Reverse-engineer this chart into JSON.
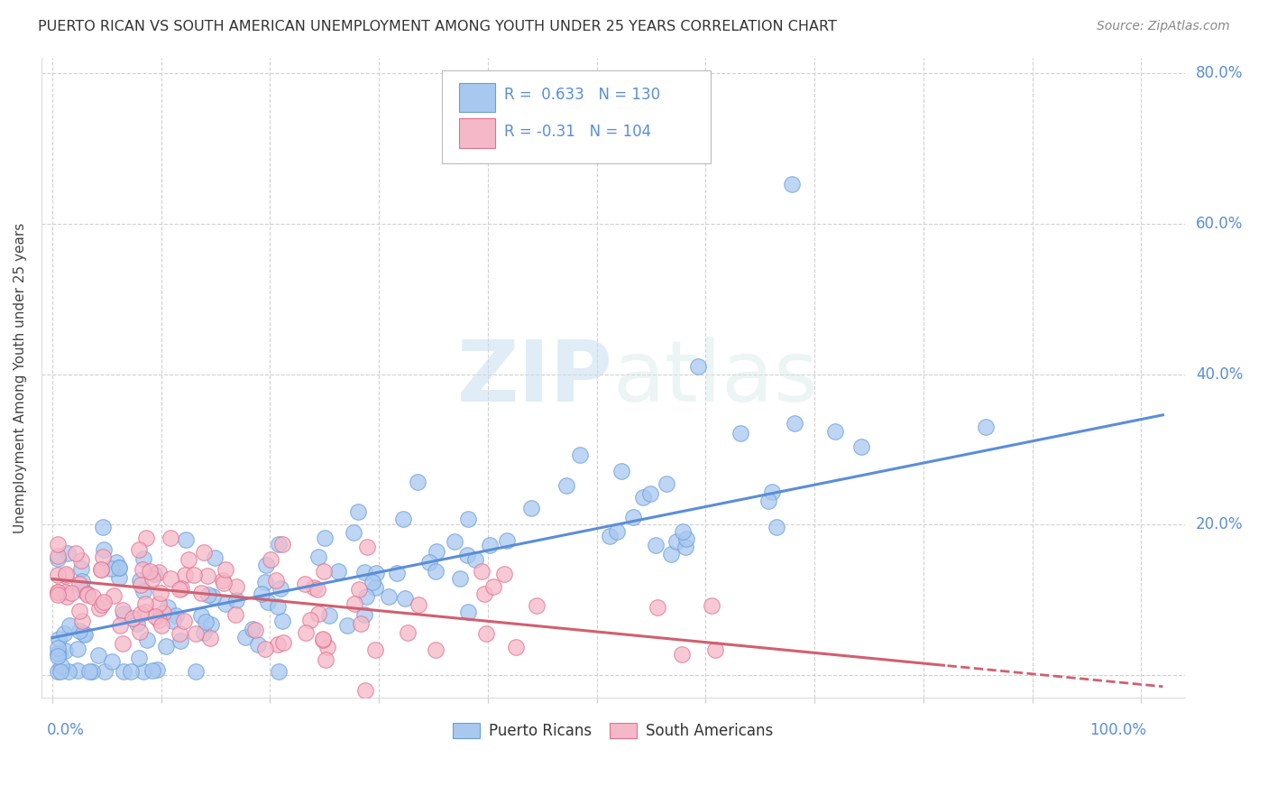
{
  "title": "PUERTO RICAN VS SOUTH AMERICAN UNEMPLOYMENT AMONG YOUTH UNDER 25 YEARS CORRELATION CHART",
  "source": "Source: ZipAtlas.com",
  "ylabel": "Unemployment Among Youth under 25 years",
  "blue_R": 0.633,
  "blue_N": 130,
  "pink_R": -0.31,
  "pink_N": 104,
  "blue_color": "#A8C8F0",
  "pink_color": "#F5B8C8",
  "blue_edge_color": "#6A9FD8",
  "pink_edge_color": "#E07090",
  "blue_line_color": "#5A8ED8",
  "pink_line_color": "#D06070",
  "background_color": "#FFFFFF",
  "grid_color": "#CCCCCC",
  "watermark_color": "#E0E8F0",
  "ytick_color": "#5A8ED8",
  "xtick_color": "#5A8ED8",
  "title_color": "#333333",
  "source_color": "#888888",
  "legend_text_color": "#5A8ED8"
}
